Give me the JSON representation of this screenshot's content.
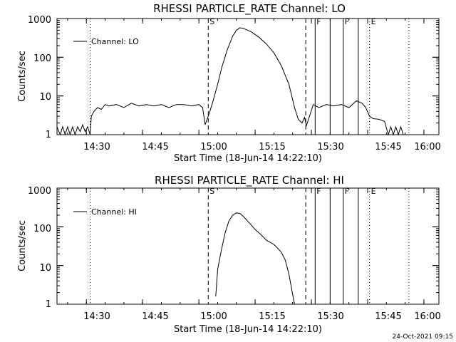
{
  "footer": {
    "timestamp": "24-Oct-2021 09:15"
  },
  "chart_data": [
    {
      "type": "line",
      "title": "RHESSI PARTICLE_RATE Channel: LO",
      "xlabel": "Start Time (18-Jun-14 14:22:10)",
      "ylabel": "Counts/sec",
      "yscale": "log",
      "ylim": [
        1,
        1000
      ],
      "xlim": [
        "14:22:10",
        "16:04:00"
      ],
      "x_ticks": [
        "14:30",
        "14:45",
        "15:00",
        "15:15",
        "15:30",
        "15:45",
        "16:00"
      ],
      "y_ticks": [
        "1",
        "10",
        "100",
        "1000"
      ],
      "legend": {
        "position": "top-left",
        "entries": [
          "Channel: LO"
        ]
      },
      "event_markers": [
        {
          "label": "S",
          "time": "15:02:30",
          "style": "dashed"
        },
        {
          "label": "",
          "time": "15:28:30",
          "style": "dashed"
        },
        {
          "label": "F",
          "time": "15:31:00",
          "style": "solid"
        },
        {
          "label": "",
          "time": "15:35:00",
          "style": "solid"
        },
        {
          "label": "F",
          "time": "15:38:30",
          "style": "solid"
        },
        {
          "label": "",
          "time": "15:42:30",
          "style": "solid"
        },
        {
          "label": "E",
          "time": "15:45:30",
          "style": "dotted"
        },
        {
          "label": "",
          "time": "14:31:00",
          "style": "dotted"
        },
        {
          "label": "",
          "time": "15:56:00",
          "style": "dotted"
        }
      ],
      "series": [
        {
          "name": "Channel: LO",
          "points": [
            [
              "14:22:10",
              1.6
            ],
            [
              "14:23:00",
              1.0
            ],
            [
              "14:23:40",
              1.6
            ],
            [
              "14:24:20",
              1.0
            ],
            [
              "14:25:00",
              1.6
            ],
            [
              "14:25:40",
              1.0
            ],
            [
              "14:26:20",
              1.6
            ],
            [
              "14:27:00",
              1.0
            ],
            [
              "14:27:40",
              1.6
            ],
            [
              "14:28:20",
              1.2
            ],
            [
              "14:29:00",
              1.8
            ],
            [
              "14:29:40",
              1.2
            ],
            [
              "14:30:20",
              1.6
            ],
            [
              "14:31:00",
              1.0
            ],
            [
              "14:31:20",
              3.0
            ],
            [
              "14:32:00",
              4.0
            ],
            [
              "14:33:00",
              5.0
            ],
            [
              "14:34:00",
              4.5
            ],
            [
              "14:35:00",
              6.0
            ],
            [
              "14:36:00",
              5.5
            ],
            [
              "14:38:00",
              6.0
            ],
            [
              "14:40:00",
              5.0
            ],
            [
              "14:42:00",
              6.5
            ],
            [
              "14:44:00",
              5.5
            ],
            [
              "14:46:00",
              6.0
            ],
            [
              "14:48:00",
              5.5
            ],
            [
              "14:50:00",
              6.0
            ],
            [
              "14:52:00",
              5.0
            ],
            [
              "14:54:00",
              6.0
            ],
            [
              "14:56:00",
              6.0
            ],
            [
              "14:58:00",
              5.5
            ],
            [
              "15:00:00",
              6.0
            ],
            [
              "15:01:00",
              5.0
            ],
            [
              "15:01:40",
              1.8
            ],
            [
              "15:02:30",
              3.0
            ],
            [
              "15:03:30",
              6.0
            ],
            [
              "15:05:00",
              20
            ],
            [
              "15:06:00",
              50
            ],
            [
              "15:07:30",
              150
            ],
            [
              "15:09:00",
              350
            ],
            [
              "15:10:00",
              500
            ],
            [
              "15:11:00",
              580
            ],
            [
              "15:12:00",
              550
            ],
            [
              "15:14:00",
              450
            ],
            [
              "15:16:00",
              330
            ],
            [
              "15:18:00",
              220
            ],
            [
              "15:20:00",
              130
            ],
            [
              "15:22:00",
              60
            ],
            [
              "15:24:00",
              20
            ],
            [
              "15:25:30",
              5
            ],
            [
              "15:26:30",
              2.5
            ],
            [
              "15:27:30",
              2.0
            ],
            [
              "15:28:10",
              2.8
            ],
            [
              "15:28:40",
              1.7
            ],
            [
              "15:29:30",
              3.0
            ],
            [
              "15:30:30",
              6.0
            ],
            [
              "15:32:00",
              5.0
            ],
            [
              "15:34:00",
              6.0
            ],
            [
              "15:36:00",
              5.5
            ],
            [
              "15:38:00",
              6.0
            ],
            [
              "15:40:00",
              5.0
            ],
            [
              "15:42:00",
              7.5
            ],
            [
              "15:43:30",
              6.5
            ],
            [
              "15:44:30",
              5.0
            ],
            [
              "15:45:30",
              3.0
            ],
            [
              "15:46:30",
              2.6
            ],
            [
              "15:48:00",
              2.5
            ],
            [
              "15:49:30",
              2.2
            ],
            [
              "15:50:30",
              1.0
            ],
            [
              "15:51:10",
              1.6
            ],
            [
              "15:51:50",
              1.0
            ],
            [
              "15:52:30",
              1.6
            ],
            [
              "15:53:10",
              1.0
            ],
            [
              "15:53:50",
              1.6
            ],
            [
              "15:54:30",
              1.0
            ]
          ]
        }
      ]
    },
    {
      "type": "line",
      "title": "RHESSI PARTICLE_RATE Channel: HI",
      "xlabel": "Start Time (18-Jun-14 14:22:10)",
      "ylabel": "Counts/sec",
      "yscale": "log",
      "ylim": [
        1,
        1000
      ],
      "xlim": [
        "14:22:10",
        "16:04:00"
      ],
      "x_ticks": [
        "14:30",
        "14:45",
        "15:00",
        "15:15",
        "15:30",
        "15:45",
        "16:00"
      ],
      "y_ticks": [
        "1",
        "10",
        "100",
        "1000"
      ],
      "legend": {
        "position": "top-left",
        "entries": [
          "Channel: HI"
        ]
      },
      "event_markers": [
        {
          "label": "S",
          "time": "15:02:30",
          "style": "dashed"
        },
        {
          "label": "",
          "time": "15:28:30",
          "style": "dashed"
        },
        {
          "label": "F",
          "time": "15:31:00",
          "style": "solid"
        },
        {
          "label": "",
          "time": "15:35:00",
          "style": "solid"
        },
        {
          "label": "F",
          "time": "15:38:30",
          "style": "solid"
        },
        {
          "label": "",
          "time": "15:42:30",
          "style": "solid"
        },
        {
          "label": "E",
          "time": "15:45:30",
          "style": "dotted"
        },
        {
          "label": "",
          "time": "14:31:00",
          "style": "dotted"
        },
        {
          "label": "",
          "time": "15:56:00",
          "style": "dotted"
        }
      ],
      "series": [
        {
          "name": "Channel: HI",
          "points": [
            [
              "15:04:30",
              1.6
            ],
            [
              "15:05:00",
              8
            ],
            [
              "15:06:00",
              25
            ],
            [
              "15:07:00",
              70
            ],
            [
              "15:08:00",
              140
            ],
            [
              "15:09:00",
              200
            ],
            [
              "15:10:00",
              230
            ],
            [
              "15:11:00",
              220
            ],
            [
              "15:12:00",
              180
            ],
            [
              "15:13:00",
              140
            ],
            [
              "15:14:00",
              110
            ],
            [
              "15:15:00",
              85
            ],
            [
              "15:16:00",
              70
            ],
            [
              "15:17:00",
              57
            ],
            [
              "15:18:00",
              45
            ],
            [
              "15:19:00",
              40
            ],
            [
              "15:20:00",
              35
            ],
            [
              "15:21:00",
              28
            ],
            [
              "15:22:00",
              22
            ],
            [
              "15:23:00",
              14
            ],
            [
              "15:24:00",
              6
            ],
            [
              "15:25:00",
              1.8
            ],
            [
              "15:25:30",
              1.0
            ]
          ]
        }
      ]
    }
  ]
}
